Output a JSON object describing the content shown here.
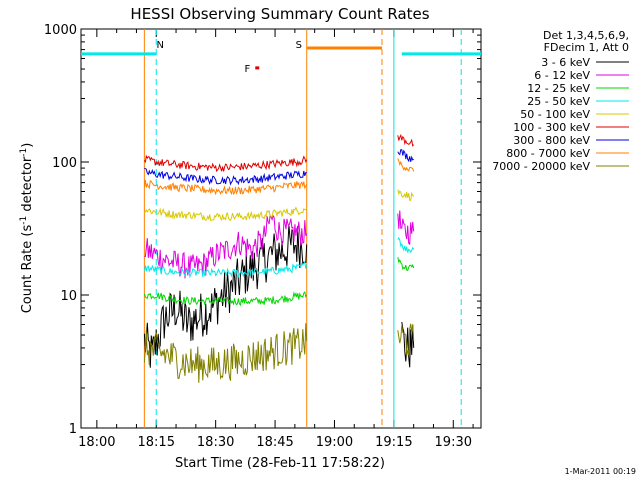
{
  "chart_data": {
    "type": "line",
    "title": "HESSI Observing Summary Count Rates",
    "xlabel": "Start Time (28-Feb-11 17:58:22)",
    "ylabel_main": "Count Rate (s",
    "ylabel_sup1": "-1",
    "ylabel_mid": " detector",
    "ylabel_sup2": "-1",
    "ylabel_end": ")",
    "yscale": "log",
    "ylim": [
      1,
      1000
    ],
    "xlim": [
      "17:56",
      "19:37"
    ],
    "x_ticks": [
      "18:00",
      "18:15",
      "18:30",
      "18:45",
      "19:00",
      "19:15",
      "19:30"
    ],
    "y_ticks": [
      "1",
      "10",
      "100",
      "1000"
    ],
    "legend_header": [
      "Det 1,3,4,5,6,9,",
      "FDecim 1, Att 0"
    ],
    "legend_placement": "top-right outside",
    "footer_date": "1-Mar-2011 00:19",
    "series": [
      {
        "name": "3 - 6 keV",
        "color": "#000000",
        "segments": [
          [
            [
              "18:12",
              4.5
            ],
            [
              "18:14",
              3.5
            ],
            [
              "18:17",
              6.5
            ],
            [
              "18:20",
              8
            ],
            [
              "18:23",
              6
            ],
            [
              "18:26",
              7
            ],
            [
              "18:29",
              8
            ],
            [
              "18:32",
              10
            ],
            [
              "18:35",
              12
            ],
            [
              "18:38",
              15
            ],
            [
              "18:41",
              17
            ],
            [
              "18:44",
              20
            ],
            [
              "18:47",
              22
            ],
            [
              "18:50",
              24
            ],
            [
              "18:53",
              24
            ]
          ],
          [
            [
              "19:17",
              5
            ],
            [
              "19:18",
              4
            ],
            [
              "19:19",
              4
            ],
            [
              "19:20",
              4
            ]
          ]
        ]
      },
      {
        "name": "6 - 12 keV",
        "color": "#e000e0",
        "segments": [
          [
            [
              "18:12",
              22
            ],
            [
              "18:15",
              20
            ],
            [
              "18:18",
              18
            ],
            [
              "18:21",
              17
            ],
            [
              "18:24",
              16
            ],
            [
              "18:27",
              17
            ],
            [
              "18:30",
              20
            ],
            [
              "18:33",
              22
            ],
            [
              "18:36",
              25
            ],
            [
              "18:39",
              22
            ],
            [
              "18:42",
              26
            ],
            [
              "18:44",
              38
            ],
            [
              "18:46",
              30
            ],
            [
              "18:49",
              30
            ],
            [
              "18:53",
              29
            ]
          ],
          [
            [
              "19:16",
              42
            ],
            [
              "19:17",
              30
            ],
            [
              "19:18",
              30
            ],
            [
              "19:19",
              30
            ],
            [
              "19:20",
              30
            ]
          ]
        ]
      },
      {
        "name": "12 - 25 keV",
        "color": "#00d800",
        "segments": [
          [
            [
              "18:12",
              10
            ],
            [
              "18:15",
              10
            ],
            [
              "18:18",
              9.5
            ],
            [
              "18:21",
              9.2
            ],
            [
              "18:24",
              9
            ],
            [
              "18:27",
              9
            ],
            [
              "18:30",
              9
            ],
            [
              "18:33",
              9
            ],
            [
              "18:36",
              9
            ],
            [
              "18:39",
              9
            ],
            [
              "18:42",
              9
            ],
            [
              "18:45",
              9.2
            ],
            [
              "18:48",
              9.5
            ],
            [
              "18:51",
              9.8
            ],
            [
              "18:53",
              10
            ]
          ],
          [
            [
              "19:16",
              19
            ],
            [
              "19:17",
              17
            ],
            [
              "19:18",
              16
            ],
            [
              "19:19",
              16
            ],
            [
              "19:20",
              16
            ]
          ]
        ]
      },
      {
        "name": "25 - 50 keV",
        "color": "#00e8e8",
        "segments": [
          [
            [
              "18:12",
              16
            ],
            [
              "18:15",
              15.5
            ],
            [
              "18:18",
              15
            ],
            [
              "18:21",
              14.8
            ],
            [
              "18:24",
              14.7
            ],
            [
              "18:27",
              14.6
            ],
            [
              "18:30",
              14.6
            ],
            [
              "18:33",
              14.6
            ],
            [
              "18:36",
              14.7
            ],
            [
              "18:39",
              14.8
            ],
            [
              "18:42",
              15
            ],
            [
              "18:45",
              15.2
            ],
            [
              "18:48",
              15.6
            ],
            [
              "18:51",
              16
            ],
            [
              "18:53",
              17
            ]
          ],
          [
            [
              "19:16",
              28
            ],
            [
              "19:17",
              24
            ],
            [
              "19:18",
              22
            ],
            [
              "19:19",
              22
            ],
            [
              "19:20",
              22
            ]
          ]
        ]
      },
      {
        "name": "50 - 100 keV",
        "color": "#d8c800",
        "segments": [
          [
            [
              "18:12",
              44
            ],
            [
              "18:15",
              42
            ],
            [
              "18:18",
              41
            ],
            [
              "18:21",
              40
            ],
            [
              "18:24",
              40
            ],
            [
              "18:27",
              39
            ],
            [
              "18:30",
              39
            ],
            [
              "18:33",
              39
            ],
            [
              "18:36",
              39
            ],
            [
              "18:39",
              39
            ],
            [
              "18:42",
              40
            ],
            [
              "18:45",
              41
            ],
            [
              "18:48",
              42
            ],
            [
              "18:51",
              43
            ],
            [
              "18:53",
              45
            ]
          ],
          [
            [
              "19:16",
              60
            ],
            [
              "19:17",
              58
            ],
            [
              "19:18",
              57
            ],
            [
              "19:19",
              55
            ],
            [
              "19:20",
              55
            ]
          ]
        ]
      },
      {
        "name": "100 - 300 keV",
        "color": "#e00000",
        "segments": [
          [
            [
              "18:12",
              104
            ],
            [
              "18:15",
              100
            ],
            [
              "18:18",
              97
            ],
            [
              "18:21",
              95
            ],
            [
              "18:24",
              93
            ],
            [
              "18:27",
              92
            ],
            [
              "18:30",
              91
            ],
            [
              "18:33",
              91
            ],
            [
              "18:36",
              92
            ],
            [
              "18:39",
              93
            ],
            [
              "18:42",
              95
            ],
            [
              "18:45",
              97
            ],
            [
              "18:48",
              99
            ],
            [
              "18:51",
              101
            ],
            [
              "18:53",
              104
            ]
          ],
          [
            [
              "19:16",
              155
            ],
            [
              "19:17",
              150
            ],
            [
              "19:18",
              145
            ],
            [
              "19:19",
              140
            ],
            [
              "19:20",
              135
            ]
          ]
        ]
      },
      {
        "name": "300 - 800 keV",
        "color": "#0000e0",
        "segments": [
          [
            [
              "18:12",
              84
            ],
            [
              "18:15",
              81
            ],
            [
              "18:18",
              79
            ],
            [
              "18:21",
              77
            ],
            [
              "18:24",
              75
            ],
            [
              "18:27",
              74
            ],
            [
              "18:30",
              73
            ],
            [
              "18:33",
              73
            ],
            [
              "18:36",
              73
            ],
            [
              "18:39",
              74
            ],
            [
              "18:42",
              75
            ],
            [
              "18:45",
              77
            ],
            [
              "18:48",
              79
            ],
            [
              "18:51",
              81
            ],
            [
              "18:53",
              83
            ]
          ],
          [
            [
              "19:16",
              125
            ],
            [
              "19:17",
              118
            ],
            [
              "19:18",
              112
            ],
            [
              "19:19",
              108
            ],
            [
              "19:20",
              105
            ]
          ]
        ]
      },
      {
        "name": "800 - 7000 keV",
        "color": "#ff8000",
        "segments": [
          [
            [
              "18:12",
              69
            ],
            [
              "18:15",
              67
            ],
            [
              "18:18",
              65
            ],
            [
              "18:21",
              64
            ],
            [
              "18:24",
              63
            ],
            [
              "18:27",
              62
            ],
            [
              "18:30",
              61
            ],
            [
              "18:33",
              61
            ],
            [
              "18:36",
              61
            ],
            [
              "18:39",
              62
            ],
            [
              "18:42",
              63
            ],
            [
              "18:45",
              64
            ],
            [
              "18:48",
              66
            ],
            [
              "18:51",
              67
            ],
            [
              "18:53",
              68
            ]
          ],
          [
            [
              "19:16",
              100
            ],
            [
              "19:17",
              95
            ],
            [
              "19:18",
              92
            ],
            [
              "19:19",
              88
            ],
            [
              "19:20",
              85
            ]
          ]
        ]
      },
      {
        "name": "7000 - 20000 keV",
        "color": "#808000",
        "segments": [
          [
            [
              "18:12",
              4
            ],
            [
              "18:15",
              3.8
            ],
            [
              "18:18",
              3.5
            ],
            [
              "18:21",
              3.2
            ],
            [
              "18:24",
              3
            ],
            [
              "18:27",
              3
            ],
            [
              "18:30",
              3
            ],
            [
              "18:33",
              3.1
            ],
            [
              "18:36",
              3.2
            ],
            [
              "18:39",
              3.4
            ],
            [
              "18:42",
              3.6
            ],
            [
              "18:45",
              3.8
            ],
            [
              "18:48",
              4
            ],
            [
              "18:51",
              4.2
            ],
            [
              "18:53",
              4.5
            ]
          ],
          [
            [
              "19:16",
              5
            ],
            [
              "19:17",
              4.8
            ],
            [
              "19:18",
              4.5
            ],
            [
              "19:19",
              4.5
            ],
            [
              "19:20",
              4.5
            ]
          ]
        ]
      }
    ],
    "flags": [
      {
        "color": "#00e8e8",
        "y": 650,
        "segments": [
          [
            "17:56",
            "18:15"
          ],
          [
            "19:17",
            "19:37"
          ]
        ]
      },
      {
        "color": "#ff8000",
        "y": 720,
        "segments": [
          [
            "18:53",
            "19:12"
          ]
        ]
      },
      {
        "color": "#e00000",
        "y": 510,
        "segments": [
          [
            "18:40",
            "18:41"
          ]
        ]
      }
    ],
    "vlines": [
      {
        "x": "18:12",
        "color": "#ff8000",
        "style": "solid"
      },
      {
        "x": "18:15",
        "color": "#00e8e8",
        "style": "dashed"
      },
      {
        "x": "18:53",
        "color": "#ff8000",
        "style": "solid"
      },
      {
        "x": "19:12",
        "color": "#ff8000",
        "style": "dashed"
      },
      {
        "x": "19:15",
        "color": "#00e8e8",
        "style": "solid"
      },
      {
        "x": "19:32",
        "color": "#00e8e8",
        "style": "dashed"
      }
    ],
    "annotations": [
      {
        "text": "N",
        "x": "18:16",
        "color": "#00e8e8"
      },
      {
        "text": "S",
        "x": "18:51",
        "color": "#ff8000"
      },
      {
        "text": "F",
        "x": "18:38",
        "color": "#e00000"
      }
    ]
  }
}
